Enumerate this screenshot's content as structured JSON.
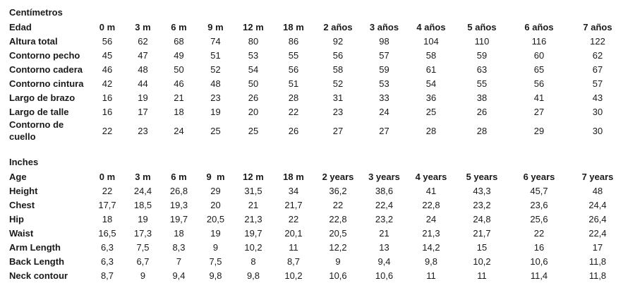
{
  "page": {
    "background_color": "#ffffff",
    "text_color": "#1a1a1a"
  },
  "tables": [
    {
      "id": "centimeters",
      "title": "Centímetros",
      "header_label": "Edad",
      "columns": [
        "0 m",
        "3 m",
        "6 m",
        "9 m",
        "12 m",
        "18 m",
        "2 años",
        "3 años",
        "4 años",
        "5 años",
        "6 años",
        "7 años"
      ],
      "rows": [
        {
          "label": "Altura total",
          "values": [
            "56",
            "62",
            "68",
            "74",
            "80",
            "86",
            "92",
            "98",
            "104",
            "110",
            "116",
            "122"
          ]
        },
        {
          "label": "Contorno pecho",
          "values": [
            "45",
            "47",
            "49",
            "51",
            "53",
            "55",
            "56",
            "57",
            "58",
            "59",
            "60",
            "62"
          ]
        },
        {
          "label": "Contorno cadera",
          "values": [
            "46",
            "48",
            "50",
            "52",
            "54",
            "56",
            "58",
            "59",
            "61",
            "63",
            "65",
            "67"
          ]
        },
        {
          "label": "Contorno cintura",
          "values": [
            "42",
            "44",
            "46",
            "48",
            "50",
            "51",
            "52",
            "53",
            "54",
            "55",
            "56",
            "57"
          ]
        },
        {
          "label": "Largo de brazo",
          "values": [
            "16",
            "19",
            "21",
            "23",
            "26",
            "28",
            "31",
            "33",
            "36",
            "38",
            "41",
            "43"
          ]
        },
        {
          "label": "Largo de talle",
          "values": [
            "16",
            "17",
            "18",
            "19",
            "20",
            "22",
            "23",
            "24",
            "25",
            "26",
            "27",
            "30"
          ]
        },
        {
          "label": "Contorno de cuello",
          "values": [
            "22",
            "23",
            "24",
            "25",
            "25",
            "26",
            "27",
            "27",
            "28",
            "28",
            "29",
            "30"
          ]
        }
      ]
    },
    {
      "id": "inches",
      "title": "Inches",
      "header_label": "Age",
      "columns": [
        "0 m",
        "3 m",
        "6 m",
        "9  m",
        "12 m",
        "18 m",
        "2 years",
        "3 years",
        "4 years",
        "5 years",
        "6 years",
        "7 years"
      ],
      "rows": [
        {
          "label": "Height",
          "values": [
            "22",
            "24,4",
            "26,8",
            "29",
            "31,5",
            "34",
            "36,2",
            "38,6",
            "41",
            "43,3",
            "45,7",
            "48"
          ]
        },
        {
          "label": "Chest",
          "values": [
            "17,7",
            "18,5",
            "19,3",
            "20",
            "21",
            "21,7",
            "22",
            "22,4",
            "22,8",
            "23,2",
            "23,6",
            "24,4"
          ]
        },
        {
          "label": "Hip",
          "values": [
            "18",
            "19",
            "19,7",
            "20,5",
            "21,3",
            "22",
            "22,8",
            "23,2",
            "24",
            "24,8",
            "25,6",
            "26,4"
          ]
        },
        {
          "label": "Waist",
          "values": [
            "16,5",
            "17,3",
            "18",
            "19",
            "19,7",
            "20,1",
            "20,5",
            "21",
            "21,3",
            "21,7",
            "22",
            "22,4"
          ]
        },
        {
          "label": "Arm Length",
          "values": [
            "6,3",
            "7,5",
            "8,3",
            "9",
            "10,2",
            "11",
            "12,2",
            "13",
            "14,2",
            "15",
            "16",
            "17"
          ]
        },
        {
          "label": "Back Length",
          "values": [
            "6,3",
            "6,7",
            "7",
            "7,5",
            "8",
            "8,7",
            "9",
            "9,4",
            "9,8",
            "10,2",
            "10,6",
            "11,8"
          ]
        },
        {
          "label": "Neck contour",
          "values": [
            "8,7",
            "9",
            "9,4",
            "9,8",
            "9,8",
            "10,2",
            "10,6",
            "10,6",
            "11",
            "11",
            "11,4",
            "11,8"
          ]
        }
      ]
    }
  ]
}
